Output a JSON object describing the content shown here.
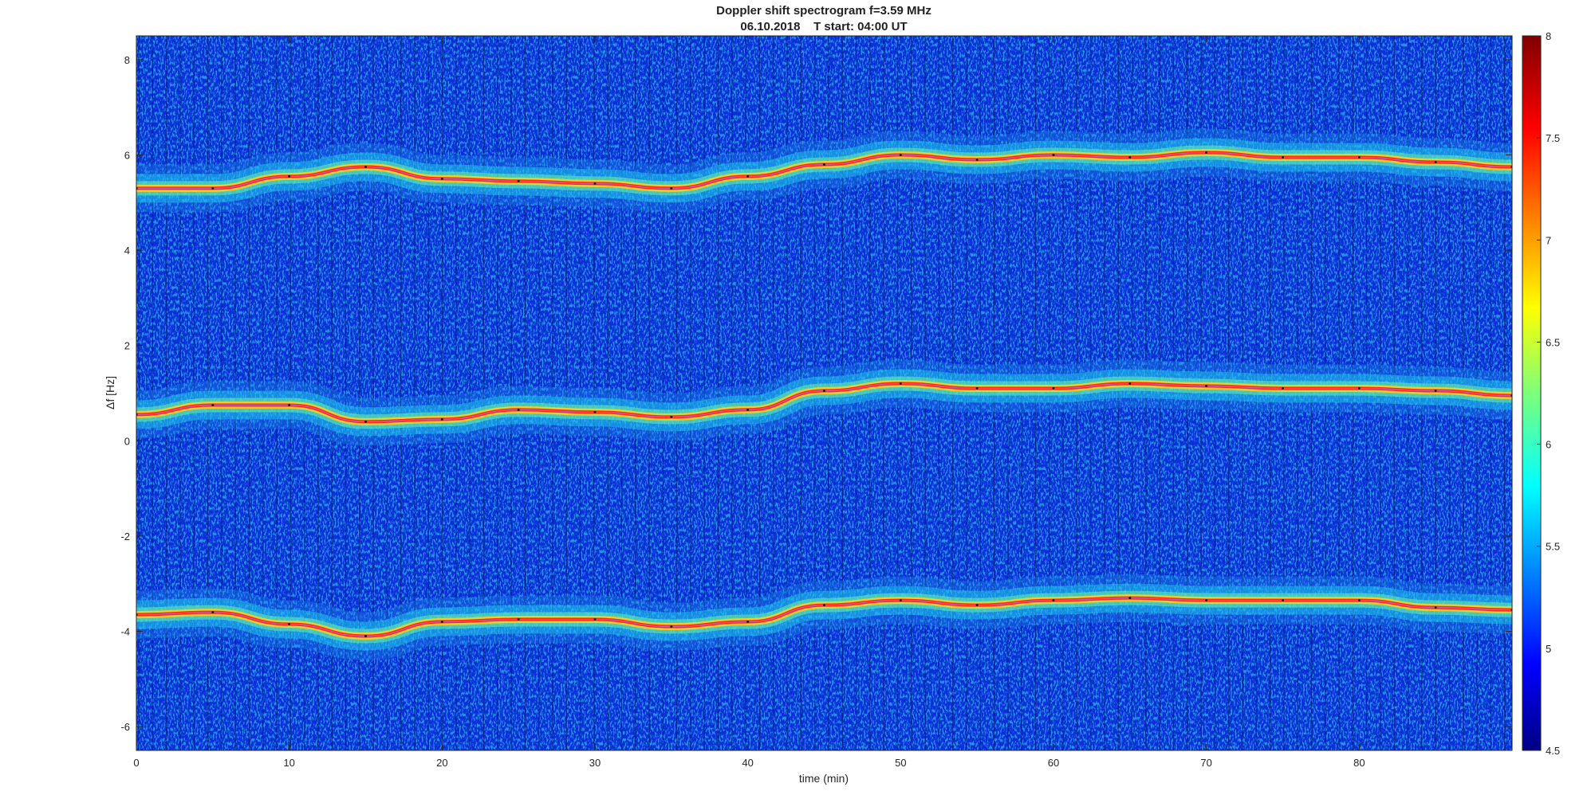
{
  "chart_data": {
    "type": "heatmap",
    "title": "Doppler shift spectrogram f=3.59 MHz",
    "subtitle": "06.10.2018    T start: 04:00 UT",
    "xlabel": "time (min)",
    "ylabel": "Δf [Hz]",
    "xlim": [
      0,
      90
    ],
    "ylim": [
      -6.5,
      8.5
    ],
    "xticks": [
      0,
      10,
      20,
      30,
      40,
      50,
      60,
      70,
      80
    ],
    "yticks": [
      -6,
      -4,
      -2,
      0,
      2,
      4,
      6,
      8
    ],
    "colorbar": {
      "colormap": "jet",
      "range": [
        4.5,
        8
      ],
      "ticks": [
        4.5,
        5,
        5.5,
        6,
        6.5,
        7,
        7.5,
        8
      ]
    },
    "series": [
      {
        "x": [
          0,
          5,
          10,
          15,
          20,
          25,
          30,
          35,
          40,
          45,
          50,
          55,
          60,
          65,
          70,
          75,
          80,
          85,
          90
        ],
        "y": [
          5.3,
          5.3,
          5.55,
          5.75,
          5.5,
          5.45,
          5.4,
          5.3,
          5.55,
          5.8,
          6.0,
          5.9,
          6.0,
          5.95,
          6.05,
          5.95,
          5.95,
          5.85,
          5.75
        ]
      },
      {
        "x": [
          0,
          5,
          10,
          15,
          20,
          25,
          30,
          35,
          40,
          45,
          50,
          55,
          60,
          65,
          70,
          75,
          80,
          85,
          90
        ],
        "y": [
          0.55,
          0.75,
          0.75,
          0.4,
          0.45,
          0.65,
          0.6,
          0.5,
          0.65,
          1.05,
          1.2,
          1.1,
          1.1,
          1.2,
          1.15,
          1.1,
          1.1,
          1.05,
          0.95
        ]
      },
      {
        "x": [
          0,
          5,
          10,
          15,
          20,
          25,
          30,
          35,
          40,
          45,
          50,
          55,
          60,
          65,
          70,
          75,
          80,
          85,
          90
        ],
        "y": [
          -3.65,
          -3.6,
          -3.85,
          -4.1,
          -3.8,
          -3.75,
          -3.75,
          -3.9,
          -3.8,
          -3.45,
          -3.35,
          -3.45,
          -3.35,
          -3.3,
          -3.35,
          -3.35,
          -3.35,
          -3.5,
          -3.55
        ]
      }
    ]
  }
}
